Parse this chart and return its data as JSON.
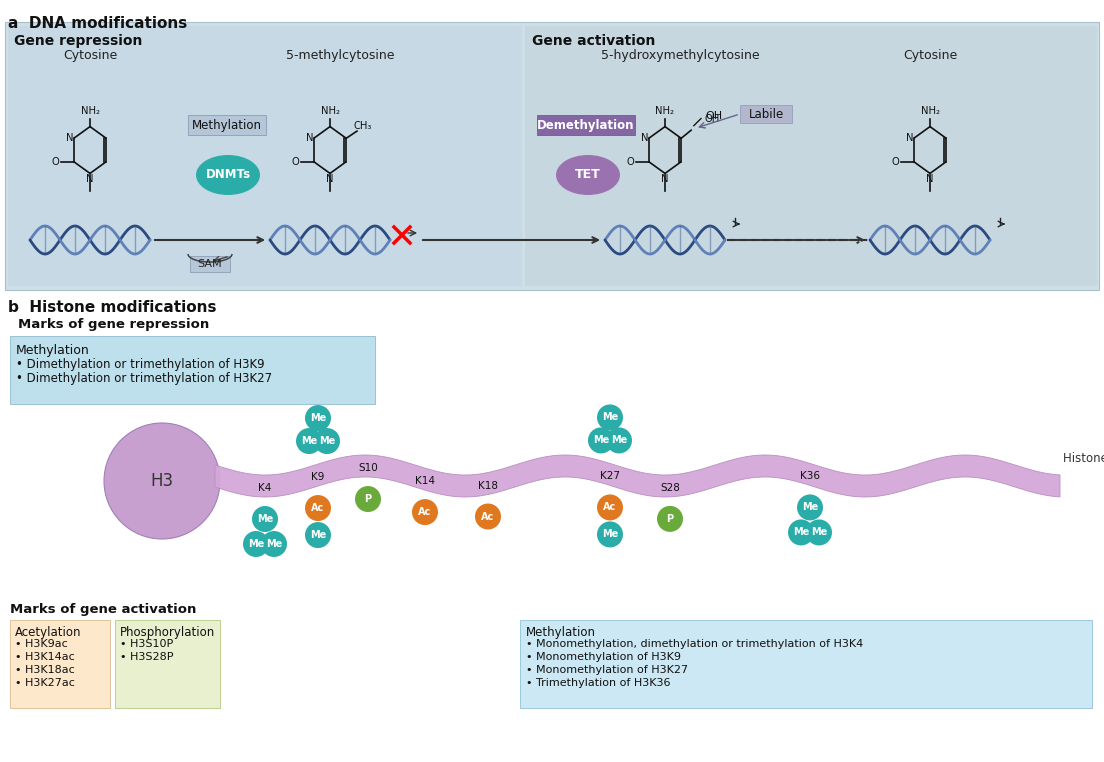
{
  "title_a": "a  DNA modifications",
  "title_b": "b  Histone modifications",
  "bg_repression_label": "Gene repression",
  "bg_activation_label": "Gene activation",
  "cytosine_label": "Cytosine",
  "methyl_label": "5-methylcytosine",
  "hydroxy_label": "5-hydroxymethylcytosine",
  "cytosine2_label": "Cytosine",
  "methylation_box_label": "Methylation",
  "dnmts_label": "DNMTs",
  "sam_label": "SAM",
  "demethylation_label": "Demethylation",
  "tet_label": "TET",
  "labile_label": "Labile",
  "repression_marks_title": "Marks of gene repression",
  "repression_methyl_label": "Methylation",
  "repression_bullet1": "• Dimethylation or trimethylation of H3K9",
  "repression_bullet2": "• Dimethylation or trimethylation of H3K27",
  "activation_marks_title": "Marks of gene activation",
  "acetyl_title": "Acetylation",
  "acetyl_bullets": [
    "• H3K9ac",
    "• H3K14ac",
    "• H3K18ac",
    "• H3K27ac"
  ],
  "phospho_title": "Phosphorylation",
  "phospho_bullets": [
    "• H3S10P",
    "• H3S28P"
  ],
  "methyl_act_title": "Methylation",
  "methyl_act_bullets": [
    "• Monomethylation, dimethylation or trimethylation of H3K4",
    "• Monomethylation of H3K9",
    "• Monomethylation of H3K27",
    "• Trimethylation of H3K36"
  ],
  "teal_color": "#2aada8",
  "purple_color": "#9b72b0",
  "orange_color": "#e07820",
  "green_color": "#6aaa3a",
  "panel_a_bg": "#cfdfe8",
  "repression_bg": "#c5d9e4",
  "activation_bg": "#c5d4de",
  "histone_tail_color": "#d4a8d8",
  "h3_color": "#c8a0d0",
  "dna_dark": "#2a4a80",
  "dna_light": "#6080b8"
}
